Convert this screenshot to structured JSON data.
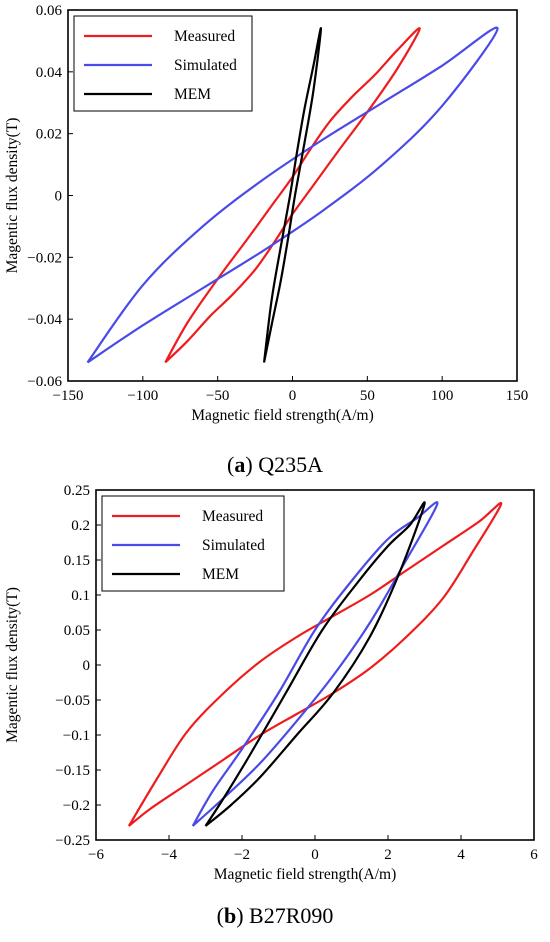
{
  "charts": [
    {
      "caption": {
        "letter": "a",
        "name": "Q235A"
      },
      "xlabel": "Magnetic field strength(A/m)",
      "ylabel": "Magentic flux density(T)",
      "xlim": [
        -150,
        150
      ],
      "ylim": [
        -0.06,
        0.06
      ],
      "xticks": [
        "−150",
        "−100",
        "−50",
        "0",
        "50",
        "100",
        "150"
      ],
      "yticks": [
        "0.06",
        "0.04",
        "0.02",
        "0",
        "−0.02",
        "−0.04",
        "−0.06"
      ],
      "legend": [
        "Measured",
        "Simulated",
        "MEM"
      ]
    },
    {
      "caption": {
        "letter": "b",
        "name": "B27R090"
      },
      "xlabel": "Magnetic field strength(A/m)",
      "ylabel": "Magentic flux density(T)",
      "xlim": [
        -6,
        6
      ],
      "ylim": [
        -0.25,
        0.25
      ],
      "xticks": [
        "−6",
        "−4",
        "−2",
        "0",
        "2",
        "4",
        "6"
      ],
      "yticks": [
        "0.25",
        "0.2",
        "0.15",
        "0.1",
        "0.05",
        "0",
        "−0.05",
        "−0.1",
        "−0.15",
        "−0.2",
        "−0.25"
      ],
      "legend": [
        "Measured",
        "Simulated",
        "MEM"
      ]
    }
  ],
  "colors": {
    "measured": "#ee1c1c",
    "simulated": "#4a4ae8",
    "mem": "#000000"
  },
  "chart_data": [
    {
      "type": "line",
      "title": "",
      "xlabel": "Magnetic field strength(A/m)",
      "ylabel": "Magentic flux density(T)",
      "xlim": [
        -150,
        150
      ],
      "ylim": [
        -0.06,
        0.06
      ],
      "grid": false,
      "legend_position": "top-left",
      "series": [
        {
          "name": "Measured",
          "x": [
            -85,
            -70,
            -55,
            -40,
            -25,
            -12,
            0,
            15,
            30,
            50,
            70,
            85,
            70,
            55,
            40,
            25,
            12,
            0,
            -15,
            -30,
            -50,
            -70,
            -85
          ],
          "y": [
            -0.054,
            -0.047,
            -0.039,
            -0.032,
            -0.024,
            -0.015,
            -0.006,
            0.004,
            0.014,
            0.027,
            0.041,
            0.054,
            0.047,
            0.039,
            0.032,
            0.024,
            0.015,
            0.006,
            -0.004,
            -0.014,
            -0.027,
            -0.041,
            -0.054
          ]
        },
        {
          "name": "Simulated",
          "x": [
            -137,
            -100,
            -60,
            -20,
            20,
            60,
            100,
            137,
            100,
            60,
            20,
            -20,
            -60,
            -100,
            -137
          ],
          "y": [
            -0.054,
            -0.042,
            -0.03,
            -0.018,
            -0.005,
            0.01,
            0.029,
            0.054,
            0.042,
            0.03,
            0.018,
            0.005,
            -0.01,
            -0.029,
            -0.054
          ]
        },
        {
          "name": "MEM",
          "x": [
            -19,
            -14,
            -8,
            -3,
            2,
            8,
            14,
            19,
            14,
            8,
            3,
            -2,
            -8,
            -14,
            -19
          ],
          "y": [
            -0.054,
            -0.042,
            -0.028,
            -0.014,
            0.001,
            0.017,
            0.034,
            0.054,
            0.042,
            0.028,
            0.014,
            -0.001,
            -0.017,
            -0.034,
            -0.054
          ]
        }
      ]
    },
    {
      "type": "line",
      "title": "",
      "xlabel": "Magnetic field strength(A/m)",
      "ylabel": "Magentic flux density(T)",
      "xlim": [
        -6,
        6
      ],
      "ylim": [
        -0.25,
        0.25
      ],
      "grid": false,
      "legend_position": "top-left",
      "series": [
        {
          "name": "Measured",
          "x": [
            -5.1,
            -4.5,
            -3.5,
            -2.5,
            -1.5,
            -0.5,
            0.5,
            1.5,
            2.5,
            3.5,
            4.3,
            5.1,
            4.5,
            3.5,
            2.5,
            1.5,
            0.5,
            -0.5,
            -1.5,
            -2.5,
            -3.5,
            -4.3,
            -5.1
          ],
          "y": [
            -0.23,
            -0.205,
            -0.17,
            -0.135,
            -0.1,
            -0.07,
            -0.04,
            -0.005,
            0.04,
            0.095,
            0.16,
            0.23,
            0.205,
            0.17,
            0.135,
            0.1,
            0.07,
            0.04,
            0.005,
            -0.04,
            -0.095,
            -0.16,
            -0.23
          ]
        },
        {
          "name": "Simulated",
          "x": [
            -3.35,
            -2.5,
            -1.5,
            -0.5,
            0.5,
            1.5,
            2.5,
            3.35,
            2.8,
            2.0,
            1.0,
            0.0,
            -1.0,
            -2.0,
            -2.8,
            -3.35
          ],
          "y": [
            -0.23,
            -0.19,
            -0.14,
            -0.08,
            -0.015,
            0.06,
            0.15,
            0.23,
            0.21,
            0.18,
            0.12,
            0.05,
            -0.04,
            -0.12,
            -0.18,
            -0.23
          ]
        },
        {
          "name": "MEM",
          "x": [
            -3.0,
            -2.3,
            -1.5,
            -0.5,
            0.5,
            1.5,
            2.3,
            3.0,
            2.6,
            2.0,
            1.2,
            0.2,
            -0.8,
            -1.8,
            -2.5,
            -3.0
          ],
          "y": [
            -0.23,
            -0.2,
            -0.16,
            -0.1,
            -0.04,
            0.04,
            0.13,
            0.23,
            0.2,
            0.17,
            0.12,
            0.05,
            -0.04,
            -0.13,
            -0.19,
            -0.23
          ]
        }
      ]
    }
  ]
}
